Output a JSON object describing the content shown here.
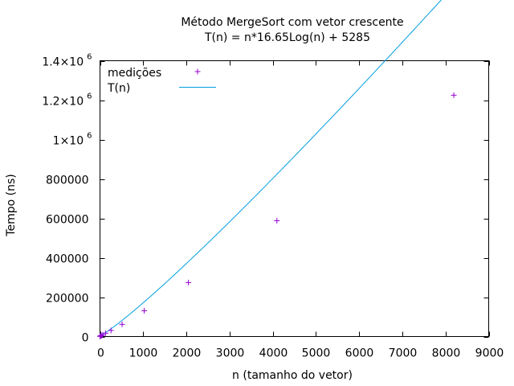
{
  "chart_data": {
    "type": "scatter",
    "title_line1": "Método MergeSort com vetor crescente",
    "title_line2": "T(n) = n*16.65Log(n) + 5285",
    "xlabel": "n (tamanho do vetor)",
    "ylabel": "Tempo (ns)",
    "xlim": [
      0,
      9000
    ],
    "ylim": [
      0,
      1400000
    ],
    "x_ticks": [
      0,
      1000,
      2000,
      3000,
      4000,
      5000,
      6000,
      7000,
      8000,
      9000
    ],
    "x_tick_labels": [
      "0",
      "1000",
      "2000",
      "3000",
      "4000",
      "5000",
      "6000",
      "7000",
      "8000",
      "9000"
    ],
    "y_ticks": [
      0,
      200000,
      400000,
      600000,
      800000,
      1000000,
      1200000,
      1400000
    ],
    "y_tick_labels": [
      {
        "base": "0",
        "exp": ""
      },
      {
        "base": "200000",
        "exp": ""
      },
      {
        "base": "400000",
        "exp": ""
      },
      {
        "base": "600000",
        "exp": ""
      },
      {
        "base": "800000",
        "exp": ""
      },
      {
        "base": "1×10",
        "exp": "6"
      },
      {
        "base": "1.2×10",
        "exp": "6"
      },
      {
        "base": "1.4×10",
        "exp": "6"
      }
    ],
    "grid": false,
    "legend_position": "top-left",
    "series": [
      {
        "name": "medições",
        "kind": "points",
        "color": "#9400d3",
        "x": [
          2,
          4,
          8,
          16,
          32,
          64,
          128,
          256,
          512,
          1024,
          2048,
          4096,
          8192
        ],
        "y": [
          1000,
          1500,
          2500,
          3500,
          5000,
          9000,
          17000,
          31000,
          62000,
          131000,
          274000,
          588000,
          1225000
        ]
      },
      {
        "name": "T(n)",
        "kind": "line",
        "color": "#009edf",
        "formula": "n*16.65Log(n) + 5285"
      }
    ]
  }
}
